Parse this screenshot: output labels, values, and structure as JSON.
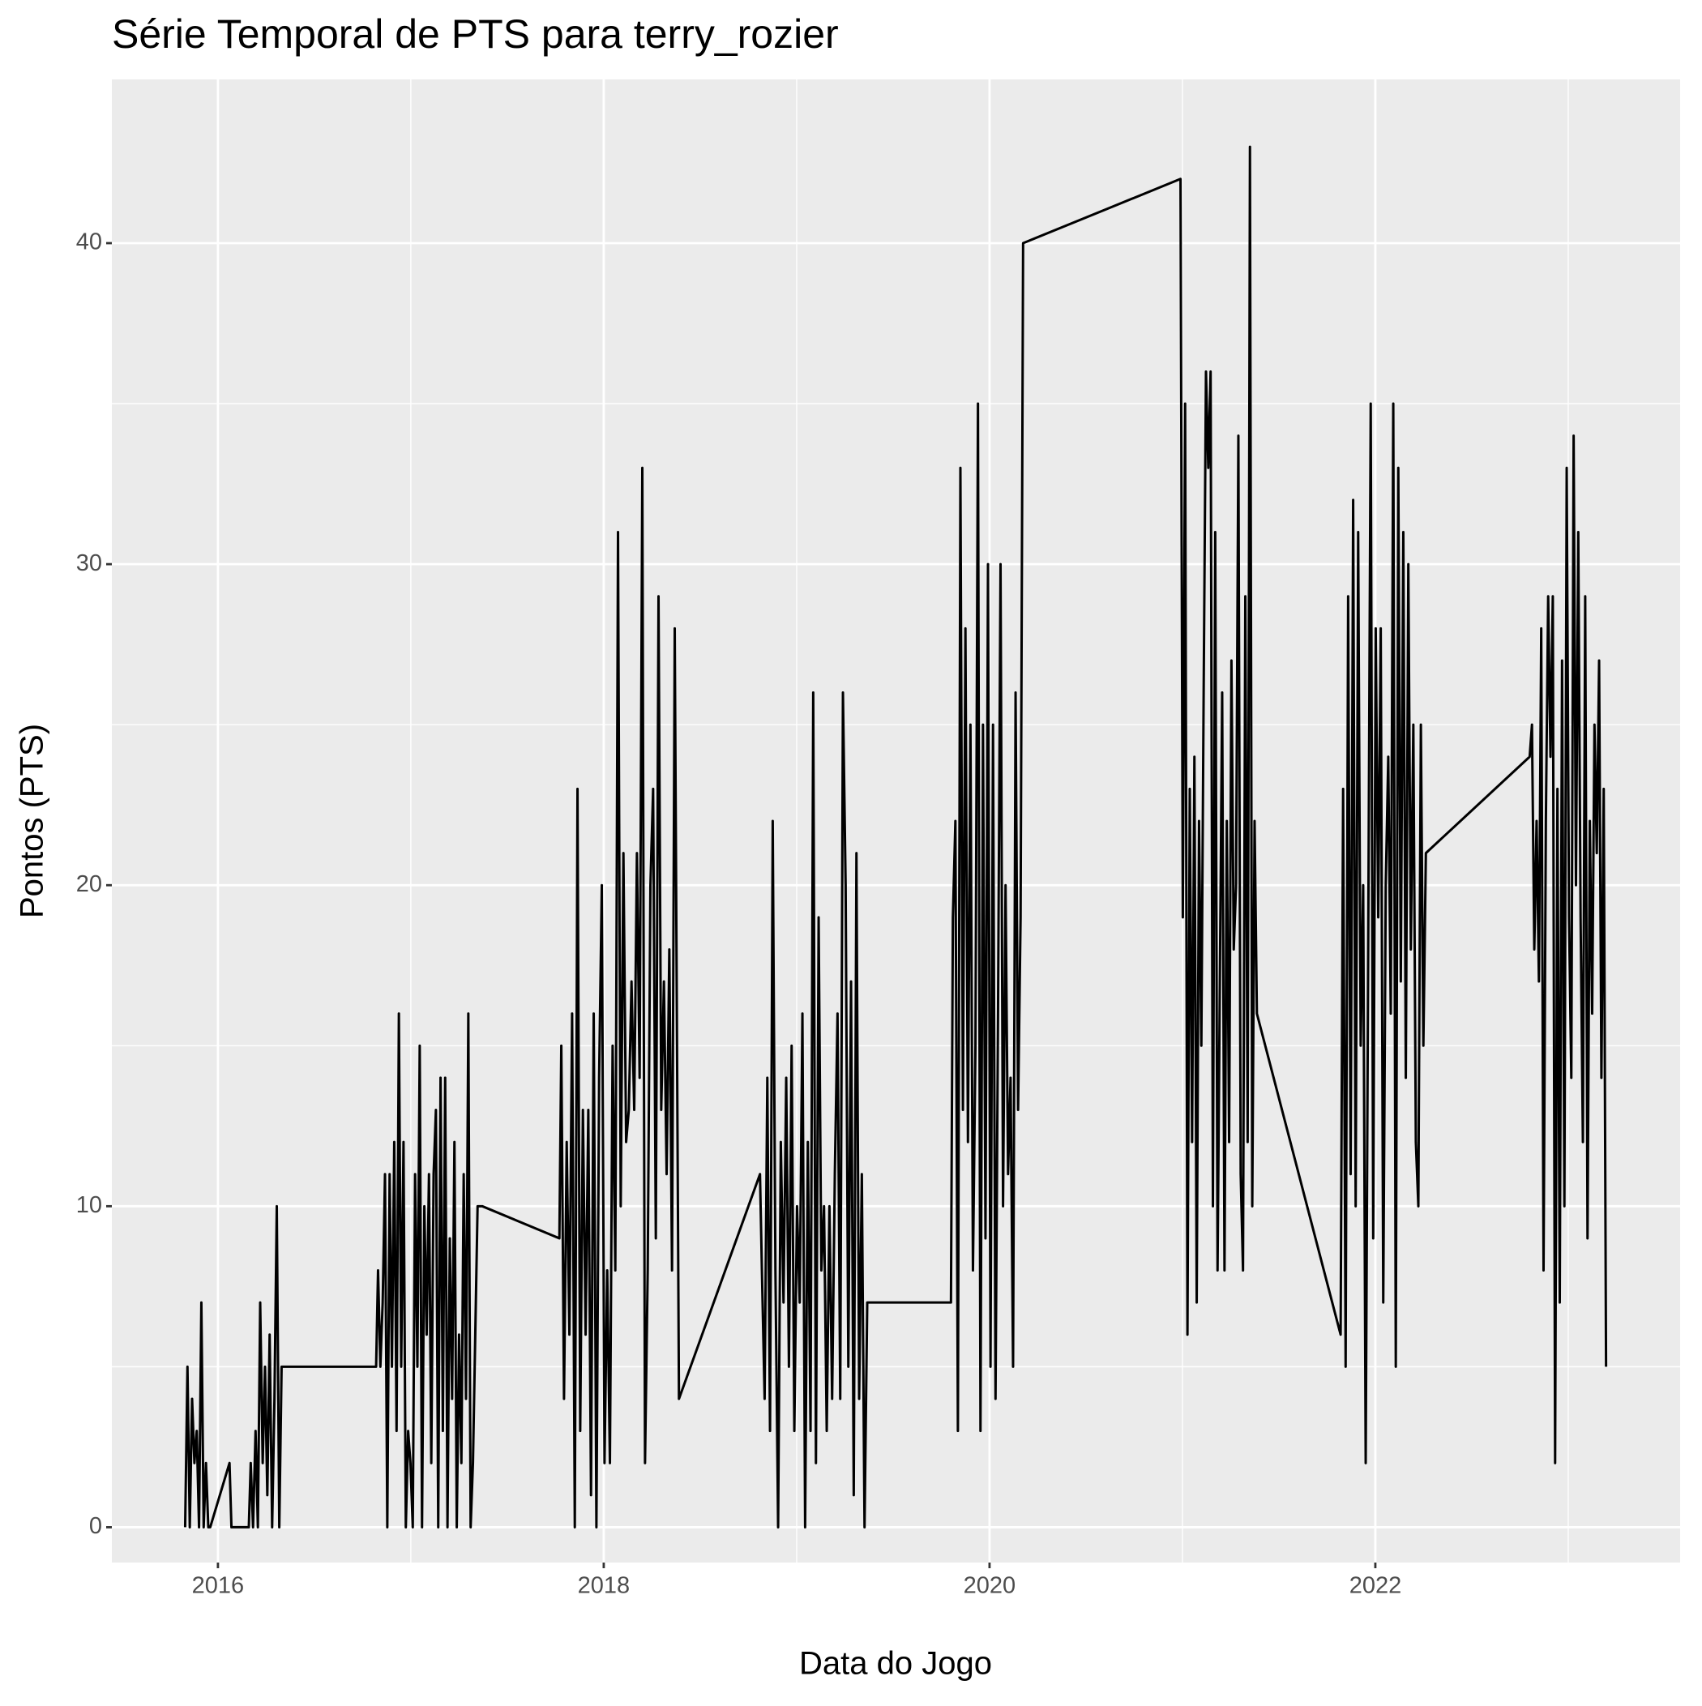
{
  "chart_data": {
    "type": "line",
    "title": "Série Temporal de PTS para terry_rozier",
    "x_label": "Data do Jogo",
    "y_label": "Pontos (PTS)",
    "color": "#000000",
    "grid": true,
    "xlim": [
      2015.45,
      2023.58
    ],
    "xticks": [
      2016,
      2018,
      2020,
      2022
    ],
    "x_minor_grid": [
      2017,
      2019,
      2021,
      2023
    ],
    "ylim": [
      -1.1,
      45.1
    ],
    "yticks": [
      0,
      10,
      20,
      30,
      40
    ],
    "y_minor_grid": [
      5,
      15,
      25,
      35
    ],
    "x": [
      2015.83,
      2015.842,
      2015.854,
      2015.866,
      2015.878,
      2015.89,
      2015.902,
      2015.914,
      2015.926,
      2015.938,
      2015.95,
      2015.96,
      2016.06,
      2016.07,
      2016.16,
      2016.17,
      2016.182,
      2016.195,
      2016.207,
      2016.219,
      2016.232,
      2016.244,
      2016.256,
      2016.268,
      2016.281,
      2016.293,
      2016.305,
      2016.318,
      2016.33,
      2016.82,
      2016.83,
      2016.842,
      2016.854,
      2016.866,
      2016.878,
      2016.89,
      2016.902,
      2016.914,
      2016.926,
      2016.938,
      2016.95,
      2016.962,
      2016.974,
      2016.986,
      2016.998,
      2017.01,
      2017.022,
      2017.034,
      2017.046,
      2017.058,
      2017.07,
      2017.082,
      2017.094,
      2017.106,
      2017.118,
      2017.13,
      2017.142,
      2017.154,
      2017.166,
      2017.178,
      2017.19,
      2017.202,
      2017.214,
      2017.226,
      2017.238,
      2017.25,
      2017.262,
      2017.274,
      2017.286,
      2017.298,
      2017.31,
      2017.322,
      2017.334,
      2017.346,
      2017.37,
      2017.77,
      2017.78,
      2017.794,
      2017.808,
      2017.822,
      2017.836,
      2017.85,
      2017.864,
      2017.878,
      2017.892,
      2017.906,
      2017.92,
      2017.934,
      2017.948,
      2017.962,
      2017.976,
      2017.99,
      2018.004,
      2018.018,
      2018.032,
      2018.046,
      2018.06,
      2018.074,
      2018.088,
      2018.102,
      2018.116,
      2018.13,
      2018.144,
      2018.158,
      2018.172,
      2018.186,
      2018.2,
      2018.214,
      2018.228,
      2018.242,
      2018.256,
      2018.27,
      2018.284,
      2018.298,
      2018.312,
      2018.326,
      2018.34,
      2018.354,
      2018.368,
      2018.39,
      2018.81,
      2018.82,
      2018.834,
      2018.848,
      2018.862,
      2018.876,
      2018.89,
      2018.904,
      2018.918,
      2018.932,
      2018.946,
      2018.96,
      2018.974,
      2018.988,
      2019.002,
      2019.016,
      2019.03,
      2019.044,
      2019.058,
      2019.072,
      2019.086,
      2019.1,
      2019.114,
      2019.128,
      2019.142,
      2019.156,
      2019.17,
      2019.184,
      2019.198,
      2019.212,
      2019.226,
      2019.24,
      2019.254,
      2019.268,
      2019.282,
      2019.296,
      2019.31,
      2019.324,
      2019.338,
      2019.352,
      2019.366,
      2019.8,
      2019.81,
      2019.823,
      2019.836,
      2019.849,
      2019.862,
      2019.875,
      2019.888,
      2019.901,
      2019.914,
      2019.927,
      2019.94,
      2019.953,
      2019.966,
      2019.979,
      2019.992,
      2020.005,
      2020.018,
      2020.031,
      2020.044,
      2020.057,
      2020.07,
      2020.083,
      2020.096,
      2020.109,
      2020.122,
      2020.135,
      2020.148,
      2020.161,
      2020.174,
      2020.99,
      2021.002,
      2021.014,
      2021.026,
      2021.038,
      2021.05,
      2021.062,
      2021.074,
      2021.086,
      2021.098,
      2021.11,
      2021.122,
      2021.134,
      2021.146,
      2021.158,
      2021.17,
      2021.182,
      2021.194,
      2021.206,
      2021.218,
      2021.23,
      2021.242,
      2021.254,
      2021.266,
      2021.278,
      2021.29,
      2021.302,
      2021.314,
      2021.326,
      2021.338,
      2021.35,
      2021.362,
      2021.374,
      2021.386,
      2021.82,
      2021.833,
      2021.846,
      2021.859,
      2021.872,
      2021.885,
      2021.898,
      2021.911,
      2021.924,
      2021.937,
      2021.95,
      2021.963,
      2021.976,
      2021.989,
      2022.002,
      2022.015,
      2022.028,
      2022.041,
      2022.054,
      2022.067,
      2022.08,
      2022.093,
      2022.106,
      2022.119,
      2022.132,
      2022.145,
      2022.158,
      2022.171,
      2022.184,
      2022.197,
      2022.21,
      2022.223,
      2022.236,
      2022.249,
      2022.262,
      2022.8,
      2022.812,
      2022.824,
      2022.836,
      2022.848,
      2022.86,
      2022.872,
      2022.884,
      2022.896,
      2022.908,
      2022.92,
      2022.932,
      2022.944,
      2022.956,
      2022.968,
      2022.98,
      2022.992,
      2023.004,
      2023.016,
      2023.028,
      2023.04,
      2023.052,
      2023.064,
      2023.076,
      2023.088,
      2023.1,
      2023.112,
      2023.124,
      2023.136,
      2023.148,
      2023.16,
      2023.172,
      2023.184,
      2023.196
    ],
    "values": [
      0,
      5,
      0,
      4,
      2,
      3,
      0,
      7,
      0,
      2,
      0,
      0,
      2,
      0,
      0,
      2,
      0,
      3,
      0,
      7,
      2,
      5,
      1,
      6,
      0,
      4,
      10,
      0,
      5,
      5,
      8,
      5,
      7,
      11,
      0,
      11,
      5,
      12,
      3,
      16,
      5,
      12,
      0,
      3,
      2,
      0,
      11,
      5,
      15,
      0,
      10,
      6,
      11,
      2,
      11,
      13,
      0,
      14,
      3,
      14,
      0,
      9,
      4,
      12,
      0,
      6,
      2,
      11,
      4,
      16,
      0,
      2,
      6,
      10,
      10,
      9,
      15,
      4,
      12,
      6,
      16,
      0,
      23,
      3,
      13,
      6,
      13,
      1,
      16,
      0,
      14,
      20,
      2,
      8,
      2,
      15,
      8,
      31,
      10,
      21,
      12,
      13,
      17,
      13,
      21,
      14,
      33,
      2,
      8,
      20,
      23,
      9,
      29,
      13,
      17,
      11,
      18,
      8,
      28,
      4,
      11,
      8,
      4,
      14,
      3,
      22,
      8,
      0,
      12,
      7,
      14,
      5,
      15,
      3,
      10,
      7,
      16,
      0,
      12,
      3,
      26,
      2,
      19,
      8,
      10,
      3,
      10,
      4,
      11,
      16,
      4,
      26,
      20,
      5,
      17,
      1,
      21,
      4,
      11,
      0,
      7,
      7,
      19,
      22,
      3,
      33,
      13,
      28,
      12,
      25,
      8,
      15,
      35,
      3,
      25,
      9,
      30,
      5,
      25,
      4,
      16,
      30,
      10,
      20,
      11,
      14,
      5,
      26,
      13,
      19,
      40,
      42,
      19,
      35,
      6,
      23,
      12,
      24,
      7,
      22,
      15,
      26,
      36,
      33,
      36,
      10,
      31,
      8,
      17,
      26,
      8,
      22,
      12,
      27,
      18,
      20,
      34,
      11,
      8,
      29,
      12,
      43,
      10,
      22,
      16,
      6,
      23,
      5,
      29,
      11,
      32,
      10,
      31,
      15,
      20,
      2,
      18,
      35,
      9,
      28,
      19,
      28,
      7,
      20,
      24,
      16,
      35,
      5,
      33,
      17,
      31,
      14,
      30,
      18,
      25,
      12,
      10,
      25,
      15,
      21,
      24,
      25,
      18,
      22,
      17,
      28,
      8,
      22,
      29,
      24,
      29,
      2,
      23,
      7,
      27,
      10,
      33,
      19,
      14,
      34,
      20,
      31,
      19,
      12,
      29,
      9,
      22,
      16,
      25,
      21,
      27,
      14,
      23,
      5
    ]
  }
}
